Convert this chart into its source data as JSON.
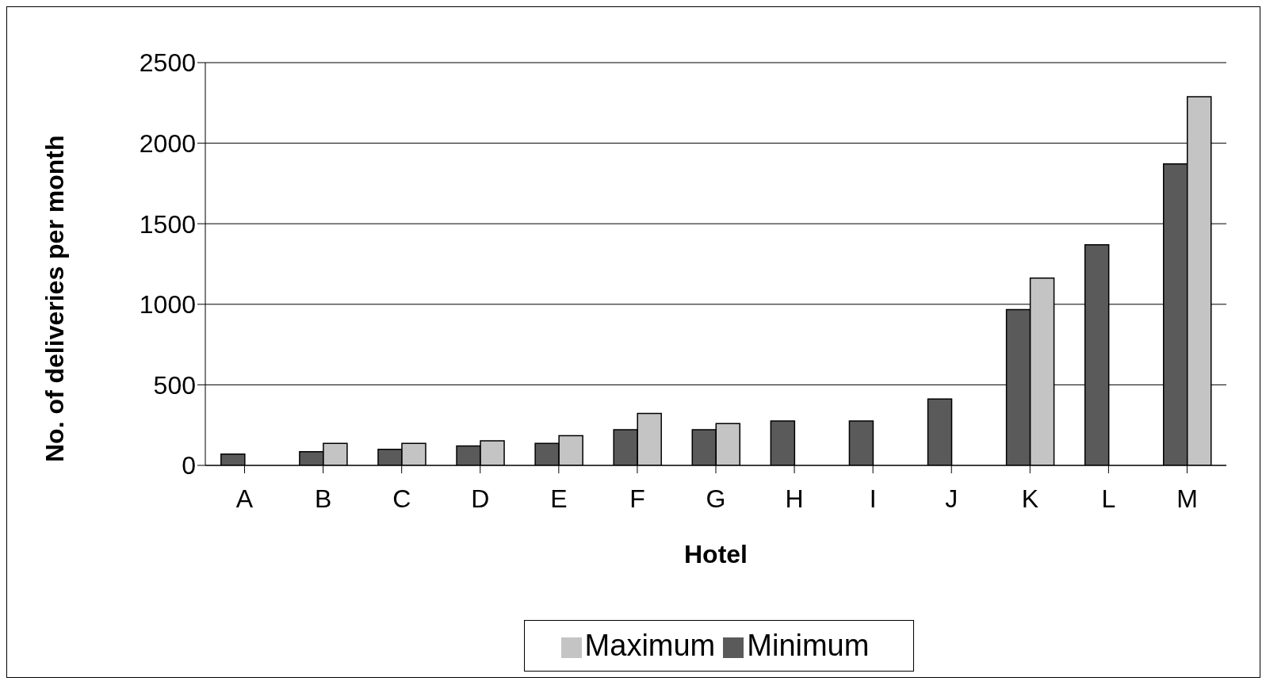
{
  "chart_data": {
    "type": "bar",
    "xlabel": "Hotel",
    "ylabel": "No. of deliveries per month",
    "categories": [
      "A",
      "B",
      "C",
      "D",
      "E",
      "F",
      "G",
      "H",
      "I",
      "J",
      "K",
      "L",
      "M"
    ],
    "series": [
      {
        "name": "Minimum",
        "color": "#5a5a5a",
        "values": [
          70,
          85,
          100,
          120,
          137,
          222,
          222,
          275,
          275,
          412,
          967,
          1369,
          1871
        ]
      },
      {
        "name": "Maximum",
        "color": "#c4c4c4",
        "values": [
          null,
          137,
          137,
          153,
          185,
          322,
          259,
          null,
          null,
          null,
          1163,
          null,
          2289
        ]
      }
    ],
    "ylim": [
      0,
      2500
    ],
    "yticks": [
      0,
      500,
      1000,
      1500,
      2000,
      2500
    ],
    "grid": "y",
    "legend": "bottom"
  }
}
